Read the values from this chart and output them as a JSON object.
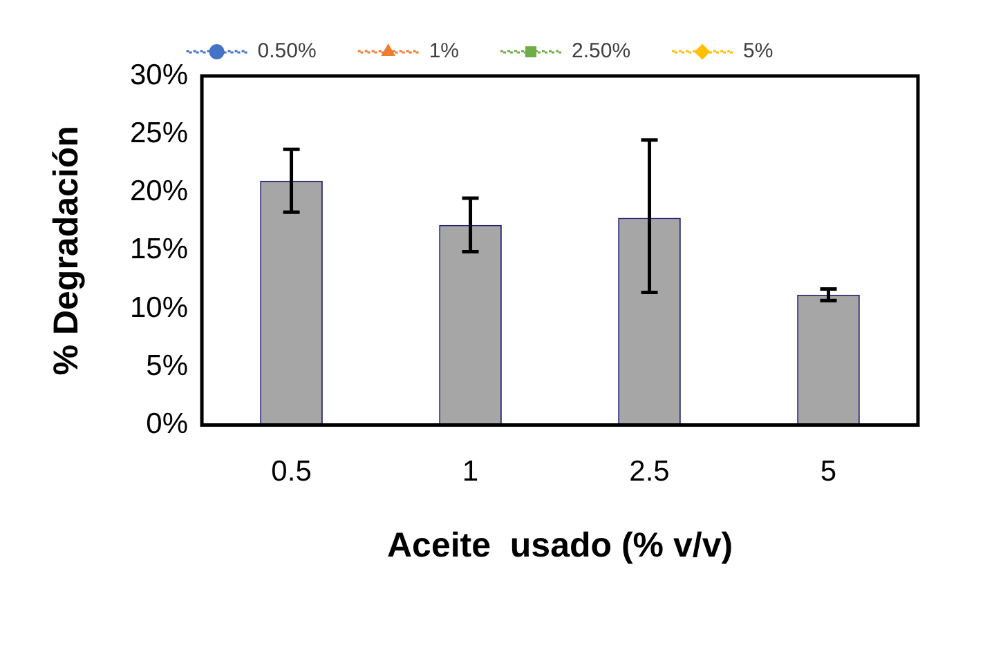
{
  "chart_data": {
    "type": "bar",
    "xlabel": "Aceite  usado (% v/v)",
    "ylabel": "% Degradación",
    "categories": [
      "0.5",
      "1",
      "2.5",
      "5"
    ],
    "series": [
      {
        "color": "#a6a6a6",
        "values": [
          21,
          17.2,
          17.8,
          11.2
        ],
        "errors": [
          2.7,
          2.3,
          [
            11.4,
            24.5
          ],
          0.5
        ]
      },
      {
        "type": "line",
        "name": "0.50%",
        "color": "#4472c4",
        "marker": "circle",
        "line_style": "dotted",
        "values": [
          null,
          null,
          null,
          null
        ]
      },
      {
        "type": "line",
        "name": "1%",
        "color": "#ed7d31",
        "marker": "triangle",
        "line_style": "dotted",
        "values": [
          null,
          null,
          null,
          null
        ]
      },
      {
        "type": "line",
        "name": "2.50%",
        "color": "#70ad47",
        "marker": "square",
        "line_style": "dotted",
        "values": [
          null,
          null,
          null,
          null
        ]
      },
      {
        "type": "line",
        "name": "5%",
        "color": "#ffc000",
        "marker": "diamond",
        "line_style": "dotted",
        "values": [
          null,
          null,
          null,
          null
        ]
      }
    ],
    "ylim": [
      0,
      30
    ],
    "yticks": [
      {
        "value": 0,
        "label": "0%"
      },
      {
        "value": 5,
        "label": "5%"
      },
      {
        "value": 10,
        "label": "10%"
      },
      {
        "value": 15,
        "label": "15%"
      },
      {
        "value": 20,
        "label": "20%"
      },
      {
        "value": 25,
        "label": "25%"
      },
      {
        "value": 30,
        "label": "30%"
      }
    ],
    "grid": false,
    "legend": "top"
  }
}
